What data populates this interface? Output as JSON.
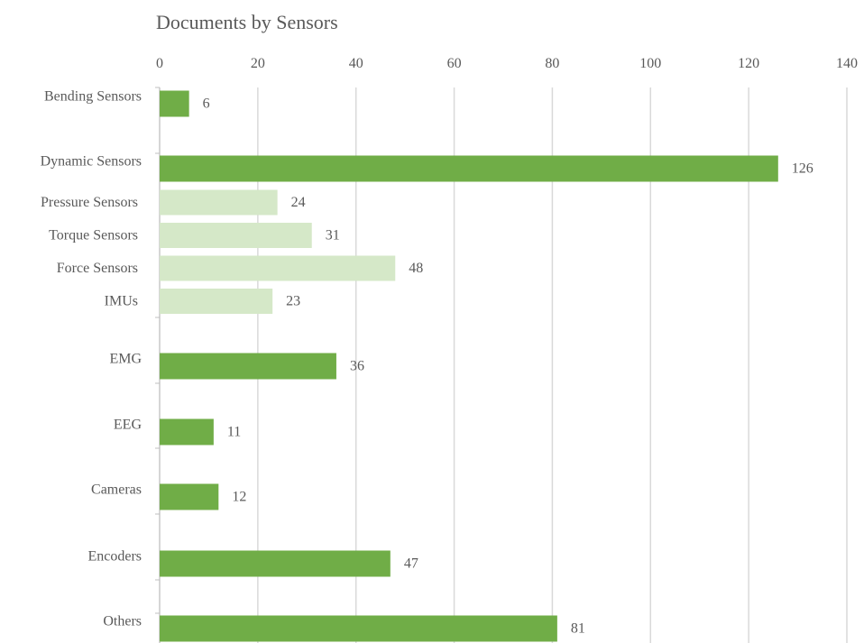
{
  "chart_data": {
    "type": "bar",
    "orientation": "horizontal",
    "title": "Documents by Sensors",
    "xlabel": "",
    "ylabel": "",
    "xlim": [
      0,
      140
    ],
    "x_ticks": [
      0,
      20,
      40,
      60,
      80,
      100,
      120,
      140
    ],
    "x_axis_position": "top",
    "grid": true,
    "legend": "none",
    "colors": {
      "primary": "#70ad47",
      "sub_category": "#d5e8c8",
      "text": "#595959",
      "grid": "#d9d9d9"
    },
    "groups": [
      {
        "label": "Bending Sensors",
        "value": 6,
        "style": "primary"
      },
      {
        "label": "Dynamic Sensors",
        "value": 126,
        "style": "primary",
        "sub": [
          {
            "label": "Pressure Sensors",
            "value": 24
          },
          {
            "label": "Torque Sensors",
            "value": 31
          },
          {
            "label": "Force Sensors",
            "value": 48
          },
          {
            "label": "IMUs",
            "value": 23
          }
        ]
      },
      {
        "label": "EMG",
        "value": 36,
        "style": "primary"
      },
      {
        "label": "EEG",
        "value": 11,
        "style": "primary"
      },
      {
        "label": "Cameras",
        "value": 12,
        "style": "primary"
      },
      {
        "label": "Encoders",
        "value": 47,
        "style": "primary"
      },
      {
        "label": "Others",
        "value": 81,
        "style": "primary"
      }
    ]
  }
}
